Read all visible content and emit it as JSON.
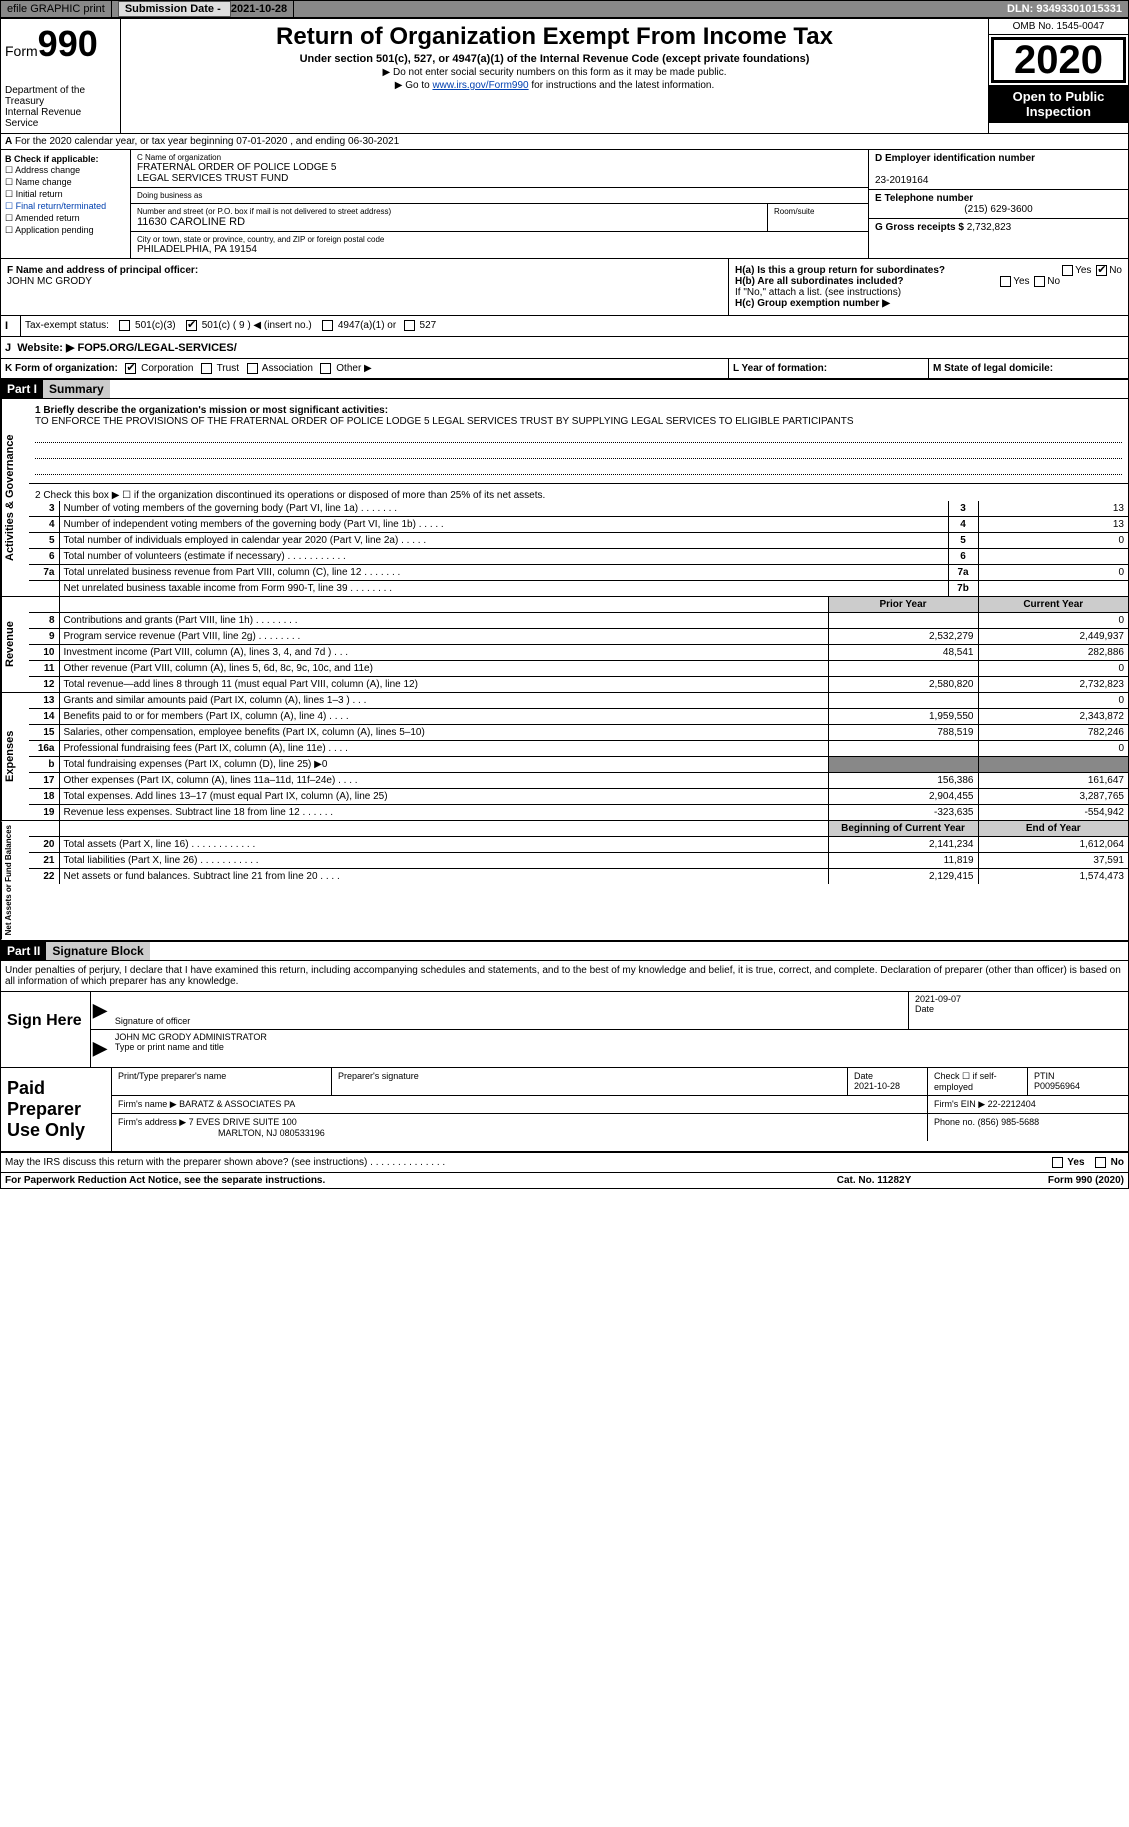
{
  "topbar": {
    "efile": "efile GRAPHIC print",
    "sub_label": "Submission Date - ",
    "sub_date": "2021-10-28",
    "dln": "DLN: 93493301015331"
  },
  "header": {
    "form_label": "Form",
    "form_number": "990",
    "dept": "Department of the Treasury\nInternal Revenue Service",
    "title": "Return of Organization Exempt From Income Tax",
    "sub": "Under section 501(c), 527, or 4947(a)(1) of the Internal Revenue Code (except private foundations)",
    "note1": "▶ Do not enter social security numbers on this form as it may be made public.",
    "note2_pre": "▶ Go to ",
    "note2_link": "www.irs.gov/Form990",
    "note2_post": " for instructions and the latest information.",
    "omb": "OMB No. 1545-0047",
    "year": "2020",
    "open": "Open to Public Inspection"
  },
  "rowA": "For the 2020 calendar year, or tax year beginning 07-01-2020   , and ending 06-30-2021",
  "boxB": {
    "title": "B Check if applicable:",
    "items": [
      "☐ Address change",
      "☐ Name change",
      "☐ Initial return",
      "☐ Final return/terminated",
      "☐ Amended return",
      "☐ Application pending"
    ]
  },
  "boxC": {
    "name_label": "C Name of organization",
    "name": "FRATERNAL ORDER OF POLICE LODGE 5\nLEGAL SERVICES TRUST FUND",
    "dba_label": "Doing business as",
    "dba": "",
    "street_label": "Number and street (or P.O. box if mail is not delivered to street address)",
    "street": "11630 CAROLINE RD",
    "room_label": "Room/suite",
    "room": "",
    "city_label": "City or town, state or province, country, and ZIP or foreign postal code",
    "city": "PHILADELPHIA, PA  19154"
  },
  "boxD": {
    "ein_label": "D Employer identification number",
    "ein": "23-2019164",
    "phone_label": "E Telephone number",
    "phone": "(215) 629-3600",
    "gross_label": "G Gross receipts $",
    "gross": "2,732,823"
  },
  "boxF": {
    "label": "F  Name and address of principal officer:",
    "name": "JOHN MC GRODY"
  },
  "boxH": {
    "a": "H(a)  Is this a group return for subordinates?",
    "b": "H(b)  Are all subordinates included?",
    "b2": "If \"No,\" attach a list. (see instructions)",
    "c": "H(c)  Group exemption number ▶",
    "yes": "Yes",
    "no": "No"
  },
  "rowI": {
    "label": "I",
    "text": "Tax-exempt status:",
    "opt1": "501(c)(3)",
    "opt2": "501(c) ( 9 ) ◀ (insert no.)",
    "opt3": "4947(a)(1) or",
    "opt4": "527"
  },
  "rowJ": {
    "label": "J",
    "text": "Website: ▶",
    "val": "  FOP5.ORG/LEGAL-SERVICES/"
  },
  "rowK": {
    "label": "K Form of organization:",
    "opts": [
      "Corporation",
      "Trust",
      "Association",
      "Other ▶"
    ],
    "l_label": "L Year of formation:",
    "l_val": "",
    "m_label": "M State of legal domicile:",
    "m_val": ""
  },
  "part1": {
    "num": "Part I",
    "title": "Summary",
    "desc_label": "1   Briefly describe the organization's mission or most significant activities:",
    "desc": "TO ENFORCE THE PROVISIONS OF THE FRATERNAL ORDER OF POLICE LODGE 5 LEGAL SERVICES TRUST BY SUPPLYING LEGAL SERVICES TO ELIGIBLE PARTICIPANTS",
    "line2": "2   Check this box ▶ ☐  if the organization discontinued its operations or disposed of more than 25% of its net assets.",
    "sections": {
      "gov": "Activities & Governance",
      "rev": "Revenue",
      "exp": "Expenses",
      "net": "Net Assets or Fund Balances"
    },
    "cols": {
      "py": "Prior Year",
      "cy": "Current Year",
      "boy": "Beginning of Current Year",
      "eoy": "End of Year"
    },
    "gov_rows": [
      {
        "n": "3",
        "t": "Number of voting members of the governing body (Part VI, line 1a)  .   .   .   .   .   .   .",
        "k": "3",
        "v": "13"
      },
      {
        "n": "4",
        "t": "Number of independent voting members of the governing body (Part VI, line 1b)  .   .   .   .   .",
        "k": "4",
        "v": "13"
      },
      {
        "n": "5",
        "t": "Total number of individuals employed in calendar year 2020 (Part V, line 2a)  .   .   .   .   .",
        "k": "5",
        "v": "0"
      },
      {
        "n": "6",
        "t": "Total number of volunteers (estimate if necessary)  .   .   .   .   .   .   .   .   .   .   .",
        "k": "6",
        "v": ""
      },
      {
        "n": "7a",
        "t": "Total unrelated business revenue from Part VIII, column (C), line 12  .   .   .   .   .   .   .",
        "k": "7a",
        "v": "0"
      },
      {
        "n": "",
        "t": "Net unrelated business taxable income from Form 990-T, line 39  .   .   .   .   .   .   .   .",
        "k": "7b",
        "v": ""
      }
    ],
    "rev_rows": [
      {
        "n": "8",
        "t": "Contributions and grants (Part VIII, line 1h)  .   .   .   .   .   .   .   .",
        "py": "",
        "cy": "0"
      },
      {
        "n": "9",
        "t": "Program service revenue (Part VIII, line 2g)  .   .   .   .   .   .   .   .",
        "py": "2,532,279",
        "cy": "2,449,937"
      },
      {
        "n": "10",
        "t": "Investment income (Part VIII, column (A), lines 3, 4, and 7d )  .   .   .",
        "py": "48,541",
        "cy": "282,886"
      },
      {
        "n": "11",
        "t": "Other revenue (Part VIII, column (A), lines 5, 6d, 8c, 9c, 10c, and 11e)",
        "py": "",
        "cy": "0"
      },
      {
        "n": "12",
        "t": "Total revenue—add lines 8 through 11 (must equal Part VIII, column (A), line 12)",
        "py": "2,580,820",
        "cy": "2,732,823"
      }
    ],
    "exp_rows": [
      {
        "n": "13",
        "t": "Grants and similar amounts paid (Part IX, column (A), lines 1–3 )  .   .   .",
        "py": "",
        "cy": "0"
      },
      {
        "n": "14",
        "t": "Benefits paid to or for members (Part IX, column (A), line 4)  .   .   .   .",
        "py": "1,959,550",
        "cy": "2,343,872"
      },
      {
        "n": "15",
        "t": "Salaries, other compensation, employee benefits (Part IX, column (A), lines 5–10)",
        "py": "788,519",
        "cy": "782,246"
      },
      {
        "n": "16a",
        "t": "Professional fundraising fees (Part IX, column (A), line 11e)  .   .   .   .",
        "py": "",
        "cy": "0"
      },
      {
        "n": "b",
        "t": "Total fundraising expenses (Part IX, column (D), line 25) ▶0",
        "py": "grey",
        "cy": "grey"
      },
      {
        "n": "17",
        "t": "Other expenses (Part IX, column (A), lines 11a–11d, 11f–24e)  .   .   .   .",
        "py": "156,386",
        "cy": "161,647"
      },
      {
        "n": "18",
        "t": "Total expenses. Add lines 13–17 (must equal Part IX, column (A), line 25)",
        "py": "2,904,455",
        "cy": "3,287,765"
      },
      {
        "n": "19",
        "t": "Revenue less expenses. Subtract line 18 from line 12  .   .   .   .   .   .",
        "py": "-323,635",
        "cy": "-554,942"
      }
    ],
    "net_rows": [
      {
        "n": "20",
        "t": "Total assets (Part X, line 16)  .   .   .   .   .   .   .   .   .   .   .   .",
        "py": "2,141,234",
        "cy": "1,612,064"
      },
      {
        "n": "21",
        "t": "Total liabilities (Part X, line 26)  .   .   .   .   .   .   .   .   .   .   .",
        "py": "11,819",
        "cy": "37,591"
      },
      {
        "n": "22",
        "t": "Net assets or fund balances. Subtract line 21 from line 20  .   .   .   .",
        "py": "2,129,415",
        "cy": "1,574,473"
      }
    ]
  },
  "part2": {
    "num": "Part II",
    "title": "Signature Block",
    "declar": "Under penalties of perjury, I declare that I have examined this return, including accompanying schedules and statements, and to the best of my knowledge and belief, it is true, correct, and complete. Declaration of preparer (other than officer) is based on all information of which preparer has any knowledge."
  },
  "sign": {
    "label": "Sign Here",
    "sig_label": "Signature of officer",
    "date_label": "Date",
    "date": "2021-09-07",
    "name": "JOHN MC GRODY  ADMINISTRATOR",
    "name_label": "Type or print name and title"
  },
  "paid": {
    "label": "Paid Preparer Use Only",
    "h1": "Print/Type preparer's name",
    "h2": "Preparer's signature",
    "h3": "Date",
    "h3v": "2021-10-28",
    "h4": "Check ☐ if self-employed",
    "h5": "PTIN",
    "h5v": "P00956964",
    "firm_label": "Firm's name    ▶",
    "firm": "BARATZ & ASSOCIATES PA",
    "ein_label": "Firm's EIN ▶",
    "ein": "22-2212404",
    "addr_label": "Firm's address ▶",
    "addr1": "7 EVES DRIVE SUITE 100",
    "addr2": "MARLTON, NJ  080533196",
    "phone_label": "Phone no.",
    "phone": "(856) 985-5688"
  },
  "disc": {
    "text": "May the IRS discuss this return with the preparer shown above? (see instructions)  .   .   .   .   .   .   .   .   .   .   .   .   .   .",
    "yes": "Yes",
    "no": "No"
  },
  "footer": {
    "l": "For Paperwork Reduction Act Notice, see the separate instructions.",
    "m": "Cat. No. 11282Y",
    "r": "Form 990 (2020)"
  }
}
